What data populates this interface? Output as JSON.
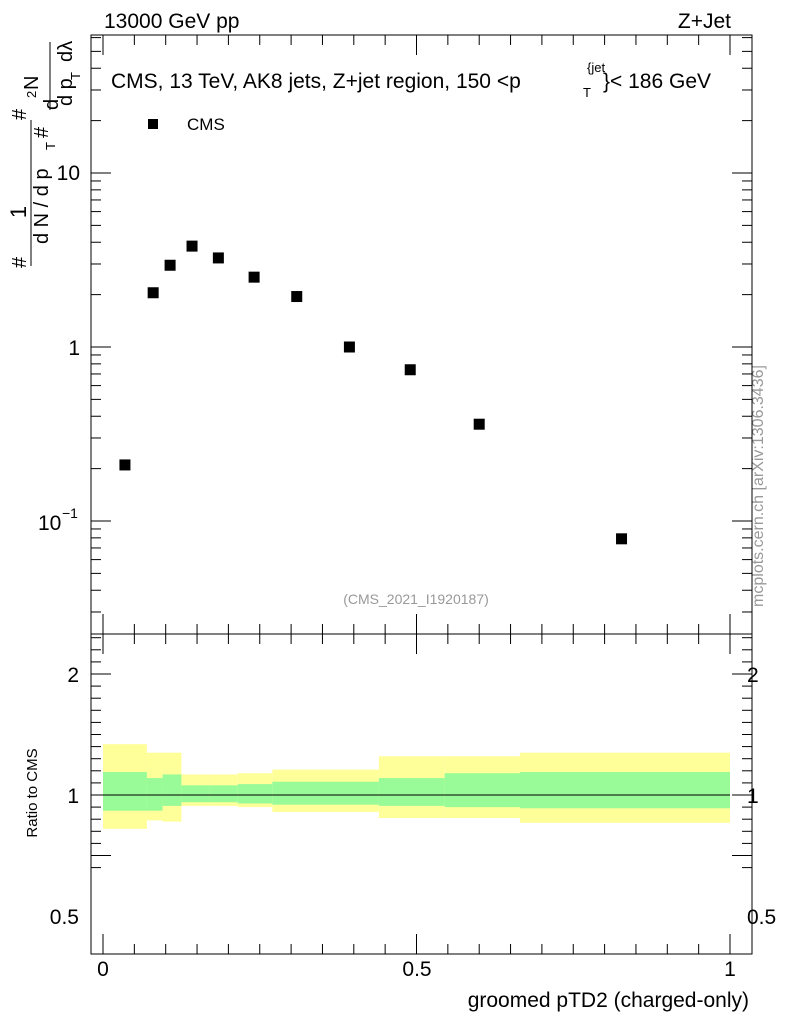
{
  "header": {
    "energy_label": "13000 GeV pp",
    "process_label": "Z+Jet"
  },
  "watermark": "mcplots.cern.ch [arXiv:1306.3436]",
  "chart_data": [
    {
      "type": "scatter",
      "title": "CMS, 13 TeV, AK8 jets, Z+jet region, 150 <p",
      "title_sup": "{jet",
      "title_sub": "T",
      "title_tail": "}< 186 GeV",
      "ylabel_parts": {
        "hash1": "#",
        "one": "1",
        "dn": "d N / d p",
        "t1": "T",
        "hash2": "#",
        "hash3": "#",
        "d2n": "d",
        "two": "2",
        "n": "N",
        "dpt": "d p",
        "t2": "T",
        "dlambda": "dλ"
      },
      "yscale": "log",
      "ylim": [
        0.025,
        60
      ],
      "y_tick_labels": {
        "ten": "10",
        "one": "1",
        "tenth_base": "10",
        "tenth_exp": "−1"
      },
      "legend": [
        {
          "name": "CMS",
          "marker": "square"
        }
      ],
      "analysis_id": "(CMS_2021_I1920187)",
      "series": [
        {
          "name": "CMS",
          "x": [
            0.035,
            0.08,
            0.107,
            0.142,
            0.184,
            0.241,
            0.309,
            0.393,
            0.49,
            0.6,
            0.827
          ],
          "y": [
            0.21,
            2.05,
            2.95,
            3.8,
            3.25,
            2.52,
            1.95,
            1.0,
            0.74,
            0.36,
            0.079
          ]
        }
      ]
    },
    {
      "type": "area",
      "ylabel": "Ratio to CMS",
      "xlabel": "groomed pTD2 (charged-only)",
      "xlim": [
        0,
        1
      ],
      "ylim": [
        0.4,
        2.3
      ],
      "x_tick_labels": [
        "0",
        "0.5",
        "1"
      ],
      "y_tick_labels": [
        "0.5",
        "1",
        "2"
      ],
      "reference_line": 1,
      "bin_edges": [
        0,
        0.07,
        0.095,
        0.125,
        0.17,
        0.215,
        0.27,
        0.35,
        0.44,
        0.545,
        0.665,
        1.0
      ],
      "band_1sigma_lower": [
        0.87,
        0.87,
        0.91,
        0.94,
        0.94,
        0.93,
        0.92,
        0.92,
        0.91,
        0.9,
        0.89
      ],
      "band_1sigma_upper": [
        1.19,
        1.14,
        1.17,
        1.08,
        1.08,
        1.09,
        1.11,
        1.11,
        1.14,
        1.18,
        1.19
      ],
      "band_2sigma_lower": [
        0.72,
        0.79,
        0.78,
        0.91,
        0.91,
        0.9,
        0.86,
        0.86,
        0.81,
        0.81,
        0.77
      ],
      "band_2sigma_upper": [
        1.42,
        1.35,
        1.35,
        1.17,
        1.17,
        1.18,
        1.21,
        1.21,
        1.32,
        1.32,
        1.35
      ],
      "colors": {
        "band_1sigma": "#98fb98",
        "band_2sigma": "#ffff99",
        "marker": "#000000"
      }
    }
  ]
}
